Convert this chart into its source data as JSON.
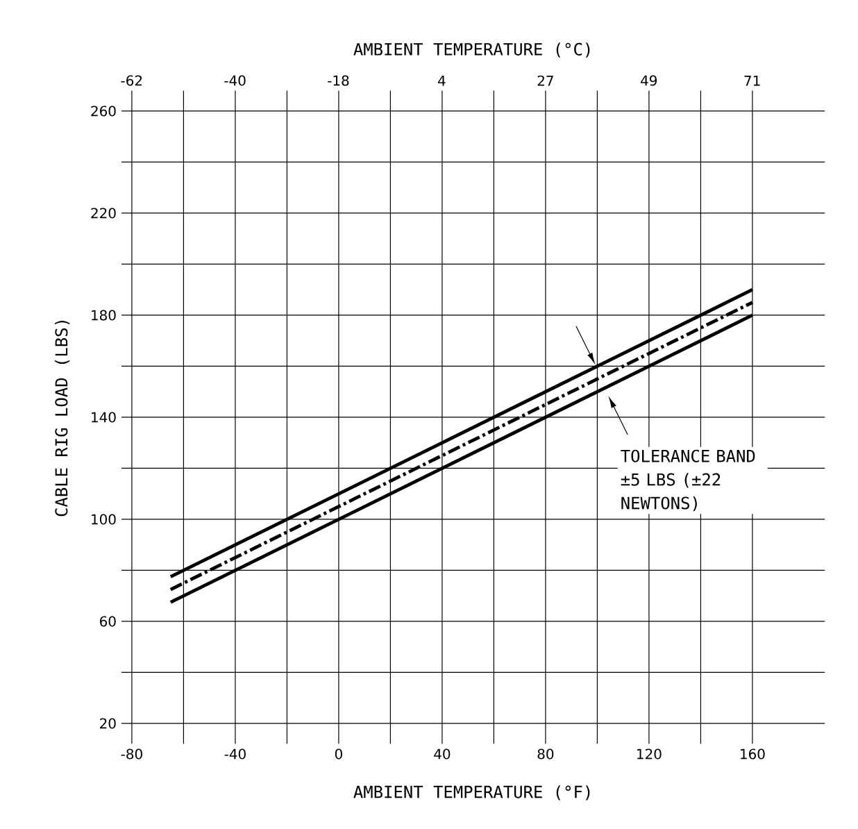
{
  "chart_data": {
    "type": "line",
    "xlabel": "AMBIENT TEMPERATURE (°F)",
    "x2label": "AMBIENT TEMPERATURE (°C)",
    "ylabel": "CABLE RIG LOAD (LBS)",
    "xlim": [
      -84,
      188
    ],
    "xticks": [
      -80,
      -40,
      0,
      40,
      80,
      120,
      160
    ],
    "x2lim": [
      -64.4,
      86.7
    ],
    "x2ticks": [
      {
        "value": -62.2,
        "label": "-62"
      },
      -40,
      {
        "value": -17.8,
        "label": "-18"
      },
      {
        "value": 4.4,
        "label": "4"
      },
      {
        "value": 26.7,
        "label": "27"
      },
      {
        "value": 48.9,
        "label": "49"
      },
      {
        "value": 71.1,
        "label": "71"
      }
    ],
    "x": [
      -65,
      160
    ],
    "ylim": [
      12,
      268
    ],
    "yticks": [
      20,
      60,
      100,
      140,
      180,
      220,
      260
    ],
    "grid": true,
    "marker": "none",
    "series": [
      {
        "color": "#000000",
        "line_style": "solid",
        "values": [
          77.5,
          190
        ]
      },
      {
        "color": "#000000",
        "line_style": "dashed",
        "values": [
          72.5,
          185
        ]
      },
      {
        "color": "#000000",
        "line_style": "solid",
        "values": [
          67.5,
          180
        ]
      }
    ],
    "annotations": [
      "TOLERANCE BAND ±5 LBS (±22 NEWTONS)"
    ]
  }
}
